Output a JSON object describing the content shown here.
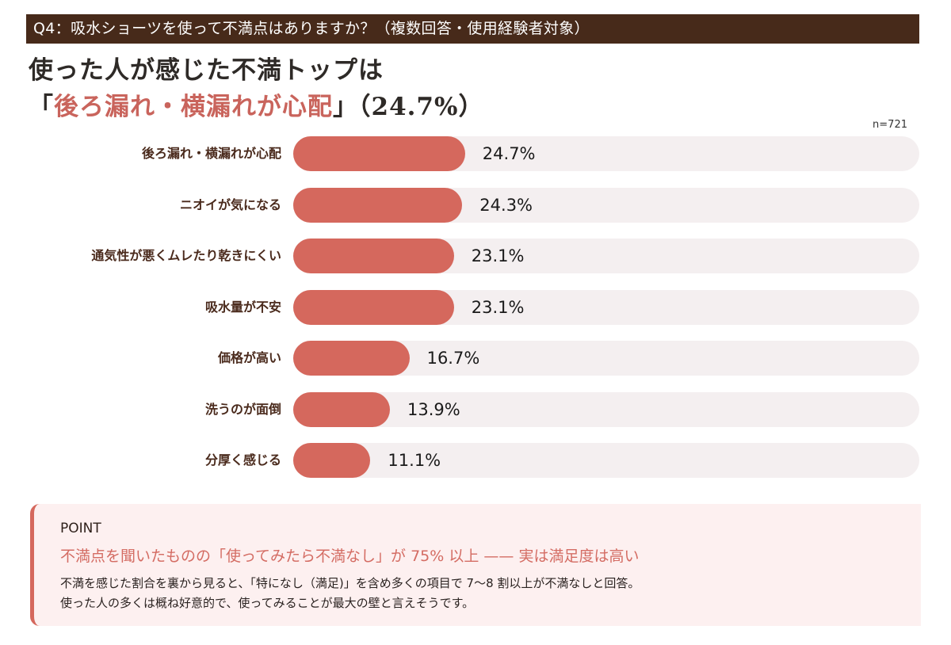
{
  "question_bar": {
    "text": "Q4：吸水ショーツを使って不満点はありますか？（複数回答・使用経験者対象）"
  },
  "headline": {
    "line1": "使った人が感じた不満トップは",
    "open_bracket": "「",
    "accent": "後ろ漏れ・横漏れが心配",
    "close_bracket": "」",
    "suffix": "（24.7%）"
  },
  "sample_size": "n=721",
  "colors": {
    "header_bg": "#472a1a",
    "bar": "#d5685d",
    "track": "#f4eff0",
    "accent_text": "#c9645c",
    "point_bg": "#fdf0f0"
  },
  "chart_data": {
    "type": "bar",
    "orientation": "horizontal",
    "title": "Q4：吸水ショーツを使って不満点はありますか？（複数回答・使用経験者対象）",
    "note": "n=721",
    "categories": [
      "後ろ漏れ・横漏れが心配",
      "ニオイが気になる",
      "通気性が悪くムレたり乾きにくい",
      "吸水量が不安",
      "価格が高い",
      "洗うのが面倒",
      "分厚く感じる"
    ],
    "values": [
      24.7,
      24.3,
      23.1,
      23.1,
      16.7,
      13.9,
      11.1
    ],
    "value_labels": [
      "24.7%",
      "24.3%",
      "23.1%",
      "23.1%",
      "16.7%",
      "13.9%",
      "11.1%"
    ],
    "unit": "%",
    "xlabel": "",
    "ylabel": "",
    "xlim": [
      0,
      90
    ],
    "grid": false,
    "legend": null
  },
  "point": {
    "title": "POINT",
    "headline": "不満点を聞いたものの「使ってみたら不満なし」が 75% 以上 —— 実は満足度は高い",
    "body_line1": "不満を感じた割合を裏から見ると、「特になし（満足)」を含め多くの項目で 7～8 割以上が不満なしと回答。",
    "body_line2": "使った人の多くは概ね好意的で、使ってみることが最大の壁と言えそうです。"
  }
}
